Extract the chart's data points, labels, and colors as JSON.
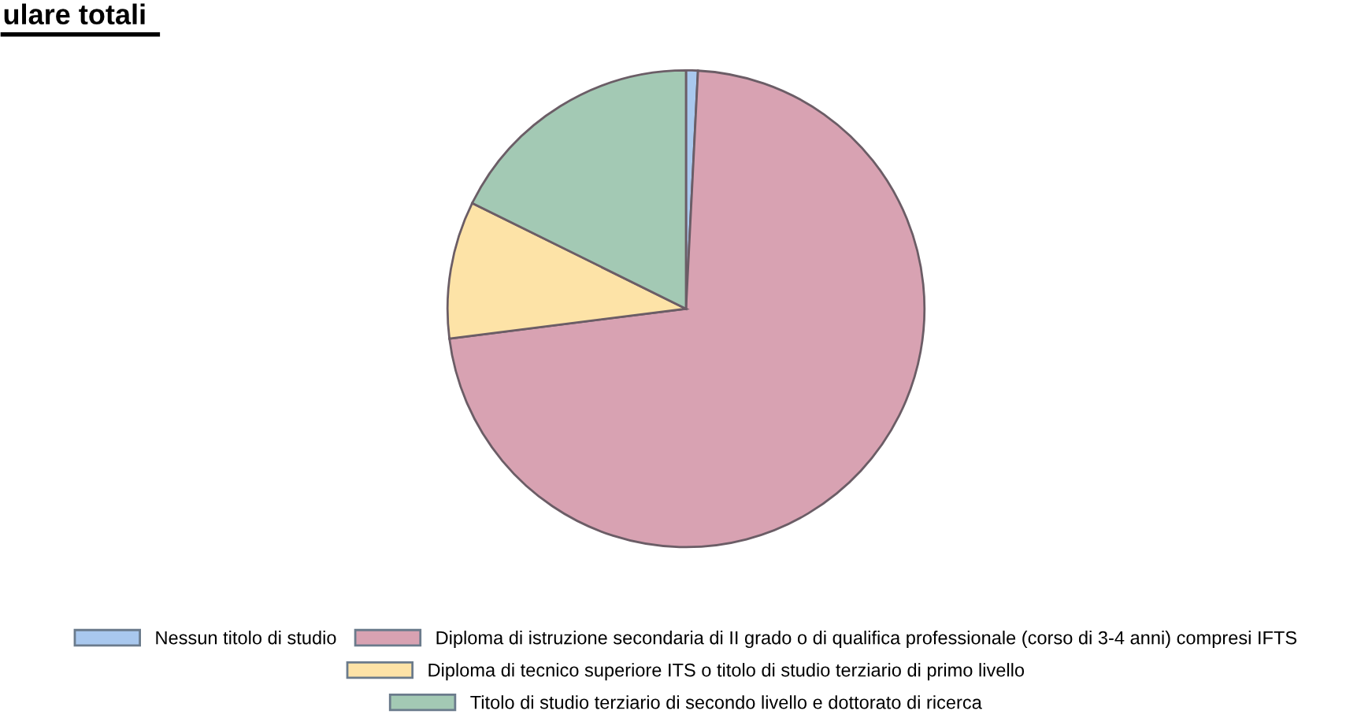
{
  "chart_data": {
    "type": "pie",
    "title": "ulare totali",
    "categories": [
      "Nessun titolo di studio",
      "Diploma di istruzione secondaria di II grado o di qualifica professionale (corso di 3-4 anni) compresi IFTS",
      "Diploma di tecnico superiore ITS o titolo di studio terziario di primo livello",
      "Titolo di studio terziario di secondo livello e dottorato di ricerca"
    ],
    "values": [
      0.8,
      72.2,
      9.3,
      17.7
    ],
    "colors": [
      "#a9c8ee",
      "#d8a2b2",
      "#fde3a7",
      "#a3c9b4"
    ],
    "legend": "bottom"
  }
}
